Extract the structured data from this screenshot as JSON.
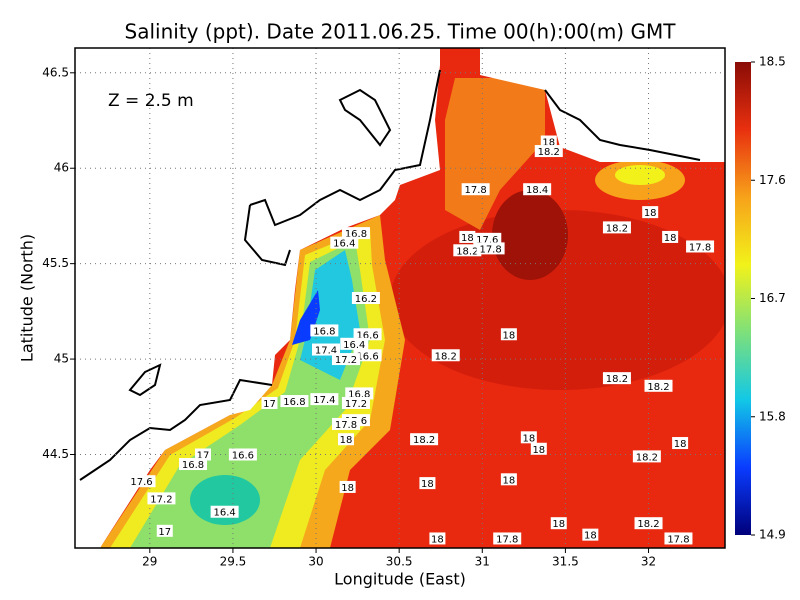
{
  "chart_data": {
    "type": "contour",
    "title": "Salinity (ppt). Date 2011.06.25. Time 00(h):00(m) GMT",
    "annotation": "Z = 2.5 m",
    "x_label": "Longitude (East)",
    "y_label": "Latitude (North)",
    "xlim": [
      28.55,
      32.46
    ],
    "ylim": [
      44.01,
      46.63
    ],
    "xticks": [
      29,
      29.5,
      30,
      30.5,
      31,
      31.5,
      32
    ],
    "yticks": [
      44.5,
      45,
      45.5,
      46,
      46.5
    ],
    "grid": true,
    "colorbar": {
      "lim": [
        14.9,
        18.5
      ],
      "ticks": [
        14.9,
        15.8,
        16.7,
        17.6,
        18.5
      ],
      "colors": [
        "#00007a",
        "#0a3cff",
        "#12c8e6",
        "#7ee07a",
        "#f2f21a",
        "#f7a21a",
        "#e8300f",
        "#8a0c06"
      ]
    },
    "contour_labels": {
      "x": [
        31.4,
        31.4,
        30.96,
        31.33,
        32.01,
        31.81,
        32.13,
        32.31,
        30.91,
        31.03,
        30.91,
        31.05,
        30.24,
        30.17,
        30.3,
        30.05,
        30.31,
        30.23,
        30.06,
        30.31,
        30.18,
        30.78,
        31.16,
        31.81,
        32.06,
        30.26,
        30.24,
        30.24,
        30.05,
        29.87,
        29.72,
        30.18,
        30.18,
        30.65,
        31.28,
        31.34,
        31.99,
        32.19,
        29.32,
        29.26,
        29.56,
        28.95,
        29.07,
        29.45,
        29.09,
        30.19,
        30.67,
        31.16,
        31.46,
        31.65,
        32.0,
        32.18,
        30.73,
        31.15
      ],
      "y": [
        46.14,
        46.09,
        45.89,
        45.89,
        45.77,
        45.69,
        45.64,
        45.59,
        45.64,
        45.63,
        45.57,
        45.58,
        45.66,
        45.61,
        45.32,
        45.15,
        45.13,
        45.08,
        45.05,
        45.02,
        45.0,
        45.02,
        45.13,
        44.9,
        44.86,
        44.82,
        44.77,
        44.68,
        44.79,
        44.78,
        44.77,
        44.66,
        44.58,
        44.58,
        44.59,
        44.53,
        44.49,
        44.56,
        44.5,
        44.45,
        44.5,
        44.36,
        44.27,
        44.2,
        44.1,
        44.33,
        44.35,
        44.37,
        44.14,
        44.08,
        44.14,
        44.06,
        44.06,
        44.06
      ],
      "values": [
        18,
        18.2,
        17.8,
        18.4,
        18,
        18.2,
        18,
        17.8,
        18,
        17.6,
        18.2,
        17.8,
        16.8,
        16.4,
        16.2,
        16.8,
        16.6,
        16.4,
        17.4,
        16.6,
        17.2,
        18.2,
        18,
        18.2,
        18.2,
        16.8,
        17.2,
        17.6,
        17.4,
        16.8,
        17,
        17.8,
        18,
        18.2,
        18,
        18,
        18.2,
        18,
        17,
        16.8,
        16.6,
        17.6,
        17.2,
        16.4,
        17,
        18,
        18,
        18,
        18,
        18,
        18.2,
        17.8,
        18,
        17.8
      ]
    }
  }
}
